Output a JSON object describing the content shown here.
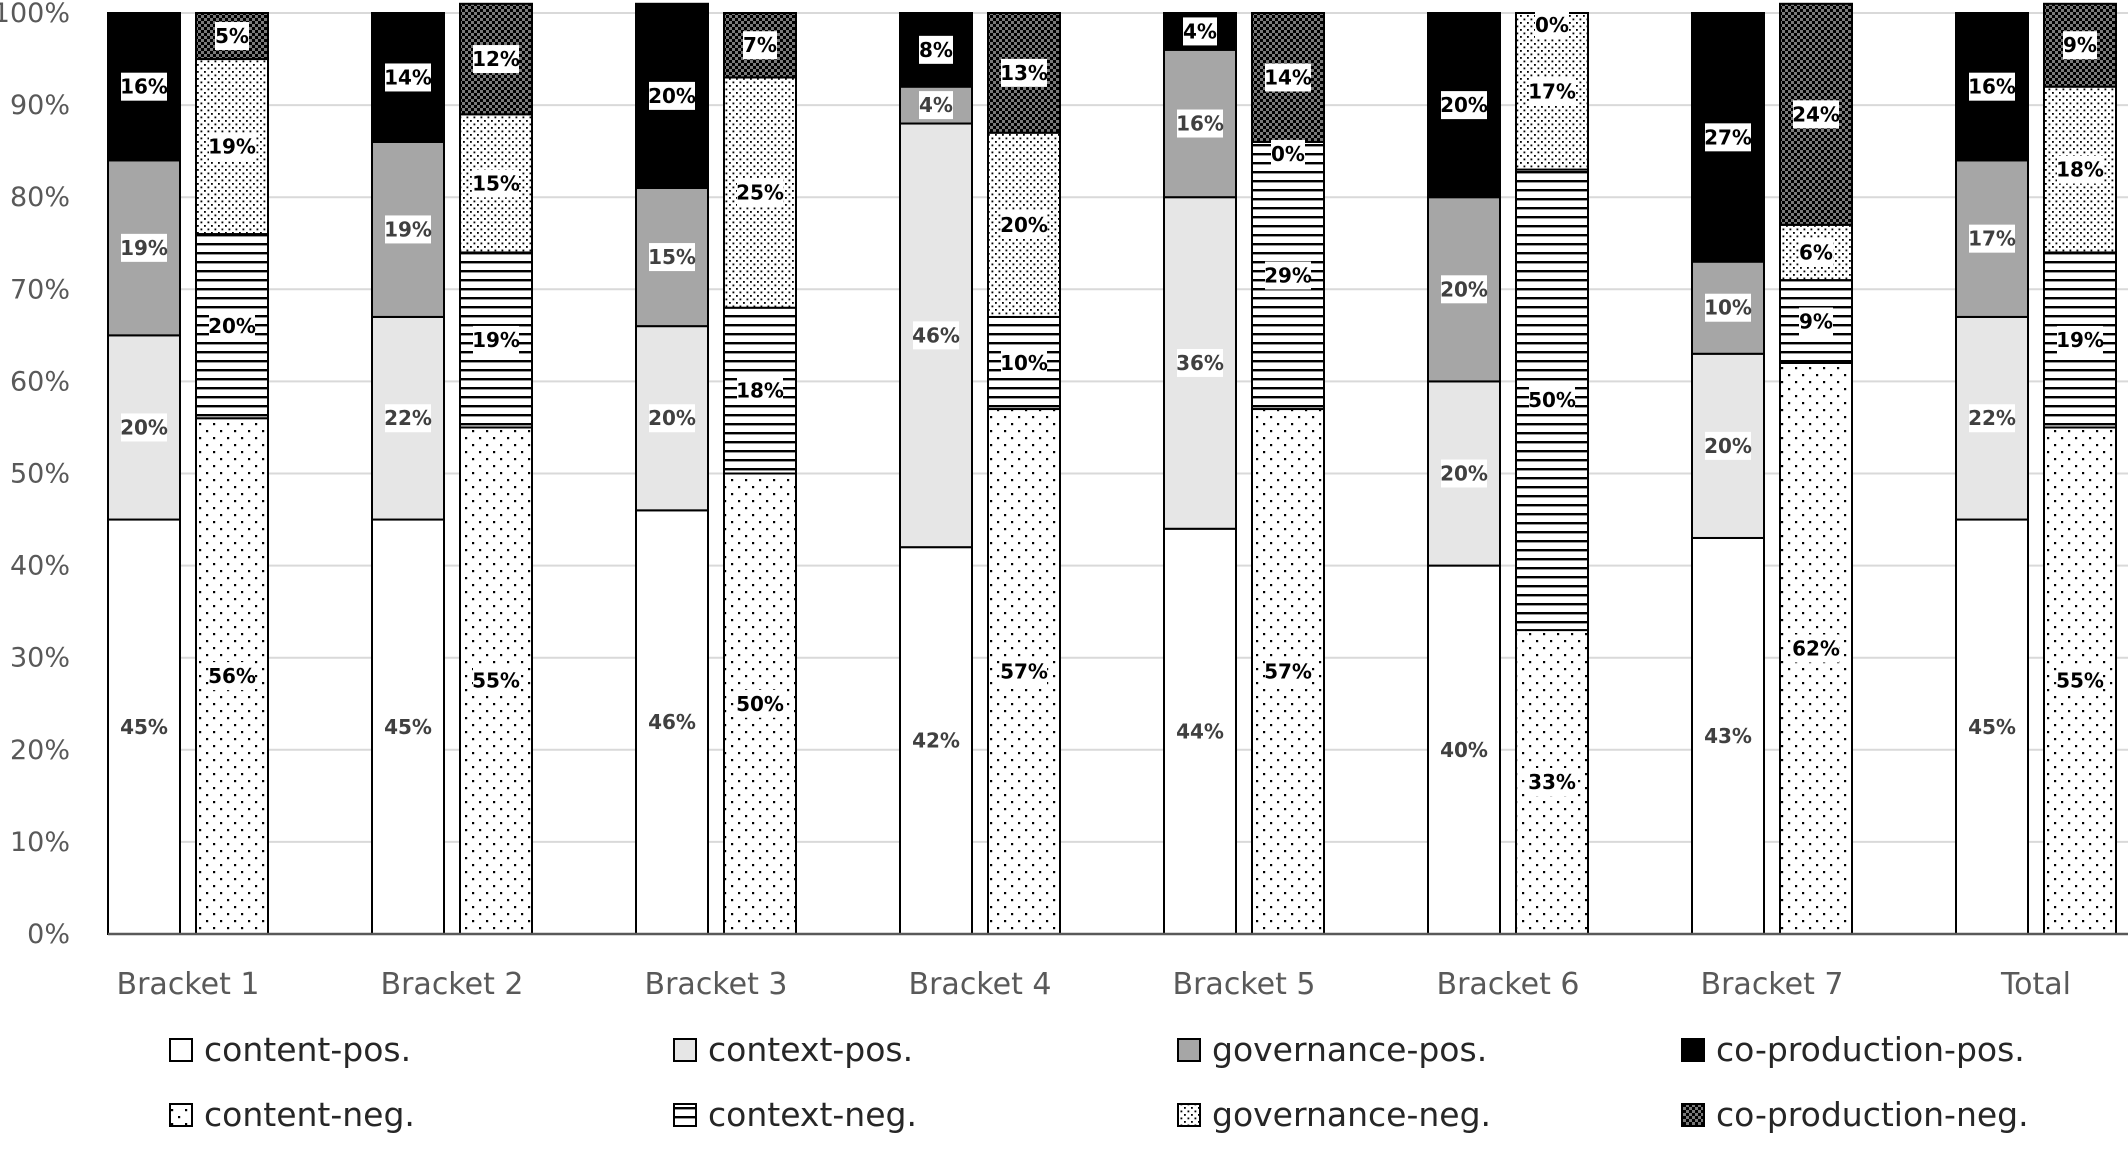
{
  "chart_data": {
    "type": "bar",
    "stacked": true,
    "percent_axis": true,
    "categories": [
      "Bracket 1",
      "Bracket 2",
      "Bracket 3",
      "Bracket 4",
      "Bracket 5",
      "Bracket 6",
      "Bracket 7",
      "Total"
    ],
    "y_ticks": [
      "0%",
      "10%",
      "20%",
      "30%",
      "40%",
      "50%",
      "60%",
      "70%",
      "80%",
      "90%",
      "100%"
    ],
    "ylim": [
      0,
      100
    ],
    "grid": true,
    "legend_position": "bottom",
    "groups": [
      {
        "bar": "positive",
        "series": [
          {
            "name": "content-pos.",
            "pattern": "white",
            "values": [
              45,
              45,
              46,
              42,
              44,
              40,
              43,
              45
            ],
            "labels": [
              "45%",
              "45%",
              "46%",
              "42%",
              "44%",
              "40%",
              "43%",
              "45%"
            ]
          },
          {
            "name": "context-pos.",
            "pattern": "light-gray",
            "values": [
              20,
              22,
              20,
              46,
              36,
              20,
              20,
              22
            ],
            "labels": [
              "20%",
              "22%",
              "20%",
              "46%",
              "36%",
              "20%",
              "20%",
              "22%"
            ]
          },
          {
            "name": "governance-pos.",
            "pattern": "gray",
            "values": [
              19,
              19,
              15,
              4,
              16,
              20,
              10,
              17
            ],
            "labels": [
              "19%",
              "19%",
              "15%",
              "4%",
              "16%",
              "20%",
              "10%",
              "17%"
            ]
          },
          {
            "name": "co-production-pos.",
            "pattern": "black",
            "values": [
              16,
              14,
              20,
              8,
              4,
              20,
              27,
              16
            ],
            "labels": [
              "16%",
              "14%",
              "20%",
              "8%",
              "4%",
              "20%",
              "27%",
              "16%"
            ]
          }
        ]
      },
      {
        "bar": "negative",
        "series": [
          {
            "name": "content-neg.",
            "pattern": "sparse-dots",
            "values": [
              56,
              55,
              50,
              57,
              57,
              33,
              62,
              55
            ],
            "labels": [
              "56%",
              "55%",
              "50%",
              "57%",
              "57%",
              "33%",
              "62%",
              "55%"
            ]
          },
          {
            "name": "context-neg.",
            "pattern": "horizontal-lines",
            "values": [
              20,
              19,
              18,
              10,
              29,
              50,
              9,
              19
            ],
            "labels": [
              "20%",
              "19%",
              "18%",
              "10%",
              "29%",
              "50%",
              "9%",
              "19%"
            ]
          },
          {
            "name": "governance-neg.",
            "pattern": "dense-dots",
            "values": [
              19,
              15,
              25,
              20,
              0,
              17,
              6,
              18
            ],
            "labels": [
              "19%",
              "15%",
              "25%",
              "20%",
              "0%",
              "17%",
              "6%",
              "18%"
            ]
          },
          {
            "name": "co-production-neg.",
            "pattern": "checker",
            "values": [
              5,
              12,
              7,
              13,
              14,
              0,
              24,
              9
            ],
            "labels": [
              "5%",
              "12%",
              "7%",
              "13%",
              "14%",
              "0%",
              "24%",
              "9%"
            ]
          }
        ]
      }
    ],
    "colors": {
      "border": "#000000",
      "grid": "#d9d9d9",
      "axis": "#595959",
      "light_gray": "#e6e6e6",
      "gray": "#a6a6a6",
      "black": "#000000"
    }
  }
}
